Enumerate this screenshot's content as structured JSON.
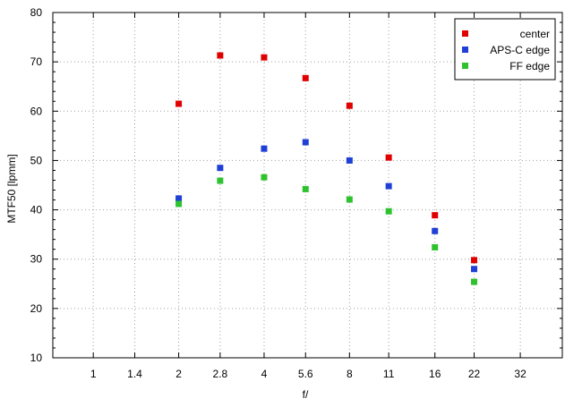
{
  "chart_data": {
    "type": "scatter",
    "xlabel": "f/",
    "ylabel": "MTF50 [lpmm]",
    "x_categories": [
      "1",
      "1.4",
      "2",
      "2.8",
      "4",
      "5.6",
      "8",
      "11",
      "16",
      "22",
      "32"
    ],
    "x_scale": "log",
    "ylim": [
      10,
      80
    ],
    "yticks": [
      10,
      20,
      30,
      40,
      50,
      60,
      70,
      80
    ],
    "grid": true,
    "legend_position": "top-right",
    "series": [
      {
        "name": "center",
        "color": "#e00000",
        "x": [
          2,
          2.8,
          4,
          5.6,
          8,
          11,
          16,
          22
        ],
        "y": [
          61.5,
          71.3,
          70.9,
          66.7,
          61.1,
          50.6,
          38.9,
          29.8
        ]
      },
      {
        "name": "APS-C edge",
        "color": "#1f3fd6",
        "x": [
          2,
          2.8,
          4,
          5.6,
          8,
          11,
          16,
          22
        ],
        "y": [
          42.3,
          48.5,
          52.4,
          53.7,
          50.0,
          44.8,
          35.7,
          28.0
        ]
      },
      {
        "name": "FF edge",
        "color": "#2ec22e",
        "x": [
          2,
          2.8,
          4,
          5.6,
          8,
          11,
          16,
          22
        ],
        "y": [
          41.2,
          45.9,
          46.6,
          44.2,
          42.1,
          39.7,
          32.4,
          25.4
        ]
      }
    ]
  }
}
